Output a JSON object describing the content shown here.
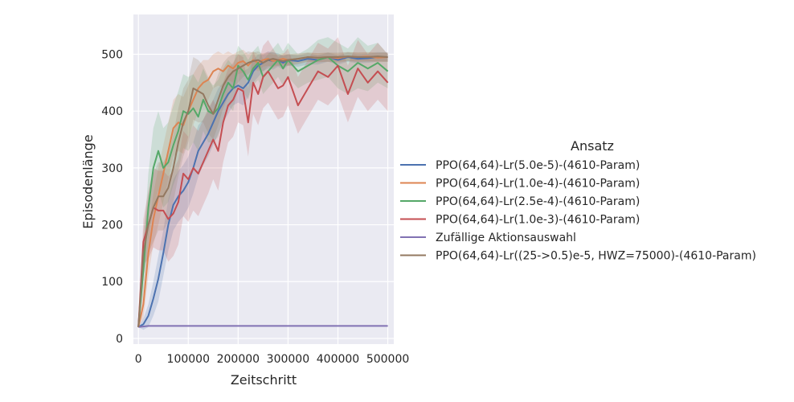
{
  "chart_data": {
    "type": "line",
    "xlabel": "Zeitschritt",
    "ylabel": "Episodenlänge",
    "xlim": [
      -10000,
      512000
    ],
    "ylim": [
      -10,
      570
    ],
    "xticks": [
      0,
      100000,
      200000,
      300000,
      400000,
      500000
    ],
    "xtick_labels": [
      "0",
      "100000",
      "200000",
      "300000",
      "400000",
      "500000"
    ],
    "yticks": [
      0,
      100,
      200,
      300,
      400,
      500
    ],
    "ytick_labels": [
      "0",
      "100",
      "200",
      "300",
      "400",
      "500"
    ],
    "grid": true,
    "background": "#eaeaf2",
    "legend": {
      "title": "Ansatz",
      "placement": "outside-right"
    },
    "series": [
      {
        "name": "PPO(64,64)-Lr(5.0e-5)-(4610-Param)",
        "color": "#4c72b0",
        "x": [
          0,
          10000,
          20000,
          30000,
          40000,
          50000,
          60000,
          70000,
          80000,
          90000,
          100000,
          110000,
          120000,
          130000,
          140000,
          150000,
          160000,
          170000,
          180000,
          190000,
          200000,
          210000,
          220000,
          230000,
          240000,
          250000,
          260000,
          270000,
          280000,
          290000,
          300000,
          320000,
          340000,
          360000,
          380000,
          400000,
          420000,
          440000,
          460000,
          480000,
          500000
        ],
        "y": [
          20,
          25,
          40,
          70,
          105,
          150,
          200,
          235,
          250,
          260,
          275,
          300,
          330,
          345,
          360,
          380,
          400,
          415,
          430,
          440,
          445,
          440,
          450,
          470,
          480,
          485,
          490,
          488,
          490,
          485,
          490,
          488,
          492,
          490,
          495,
          490,
          495,
          492,
          493,
          495,
          495
        ],
        "band": [
          0,
          10,
          20,
          30,
          40,
          40,
          45,
          45,
          45,
          45,
          45,
          45,
          45,
          40,
          40,
          40,
          40,
          35,
          35,
          30,
          30,
          30,
          25,
          20,
          20,
          15,
          15,
          15,
          12,
          12,
          10,
          10,
          10,
          8,
          8,
          8,
          8,
          8,
          8,
          8,
          8
        ]
      },
      {
        "name": "PPO(64,64)-Lr(1.0e-4)-(4610-Param)",
        "color": "#dd8452",
        "x": [
          0,
          10000,
          20000,
          30000,
          40000,
          50000,
          60000,
          70000,
          80000,
          90000,
          100000,
          110000,
          120000,
          130000,
          140000,
          150000,
          160000,
          170000,
          180000,
          190000,
          200000,
          210000,
          220000,
          230000,
          240000,
          250000,
          260000,
          270000,
          280000,
          290000,
          300000,
          320000,
          340000,
          360000,
          380000,
          400000,
          420000,
          440000,
          460000,
          480000,
          500000
        ],
        "y": [
          20,
          60,
          150,
          210,
          250,
          290,
          330,
          370,
          380,
          375,
          400,
          420,
          440,
          450,
          455,
          470,
          475,
          470,
          480,
          475,
          485,
          488,
          480,
          490,
          485,
          490,
          492,
          488,
          490,
          492,
          490,
          492,
          495,
          494,
          495,
          493,
          496,
          495,
          496,
          494,
          495
        ],
        "band": [
          0,
          25,
          40,
          45,
          50,
          50,
          50,
          50,
          50,
          50,
          45,
          45,
          40,
          40,
          35,
          30,
          30,
          30,
          25,
          25,
          20,
          20,
          20,
          15,
          15,
          12,
          12,
          12,
          10,
          10,
          10,
          8,
          8,
          8,
          8,
          8,
          8,
          8,
          8,
          8,
          8
        ]
      },
      {
        "name": "PPO(64,64)-Lr(2.5e-4)-(4610-Param)",
        "color": "#55a868",
        "x": [
          0,
          10000,
          20000,
          30000,
          40000,
          50000,
          60000,
          70000,
          80000,
          90000,
          100000,
          110000,
          120000,
          130000,
          140000,
          150000,
          160000,
          170000,
          180000,
          190000,
          200000,
          210000,
          220000,
          230000,
          240000,
          250000,
          260000,
          270000,
          280000,
          290000,
          300000,
          320000,
          340000,
          360000,
          380000,
          400000,
          420000,
          440000,
          460000,
          480000,
          500000
        ],
        "y": [
          20,
          120,
          230,
          300,
          330,
          300,
          310,
          340,
          365,
          400,
          395,
          405,
          390,
          420,
          400,
          395,
          405,
          430,
          450,
          440,
          480,
          470,
          455,
          475,
          485,
          460,
          470,
          480,
          490,
          475,
          490,
          470,
          480,
          490,
          495,
          480,
          470,
          485,
          475,
          485,
          470
        ],
        "band": [
          0,
          40,
          60,
          70,
          70,
          70,
          70,
          70,
          70,
          65,
          65,
          60,
          60,
          55,
          55,
          50,
          50,
          45,
          40,
          40,
          35,
          35,
          35,
          30,
          30,
          30,
          30,
          30,
          30,
          30,
          30,
          30,
          30,
          35,
          35,
          40,
          40,
          45,
          40,
          35,
          30
        ]
      },
      {
        "name": "PPO(64,64)-Lr(1.0e-3)-(4610-Param)",
        "color": "#c44e52",
        "x": [
          0,
          10000,
          20000,
          30000,
          40000,
          50000,
          60000,
          70000,
          80000,
          90000,
          100000,
          110000,
          120000,
          130000,
          140000,
          150000,
          160000,
          170000,
          180000,
          190000,
          200000,
          210000,
          220000,
          230000,
          240000,
          250000,
          260000,
          270000,
          280000,
          290000,
          300000,
          320000,
          340000,
          360000,
          380000,
          400000,
          420000,
          440000,
          460000,
          480000,
          500000
        ],
        "y": [
          20,
          170,
          200,
          230,
          225,
          225,
          210,
          220,
          240,
          290,
          280,
          300,
          290,
          310,
          330,
          350,
          330,
          380,
          410,
          420,
          440,
          435,
          380,
          450,
          430,
          460,
          470,
          455,
          440,
          445,
          460,
          410,
          440,
          470,
          460,
          480,
          430,
          475,
          450,
          470,
          450
        ],
        "band": [
          0,
          40,
          60,
          70,
          70,
          70,
          75,
          75,
          75,
          75,
          75,
          75,
          75,
          75,
          75,
          70,
          70,
          70,
          65,
          65,
          60,
          60,
          60,
          55,
          55,
          55,
          55,
          55,
          55,
          55,
          50,
          50,
          50,
          50,
          50,
          50,
          50,
          50,
          50,
          50,
          50
        ]
      },
      {
        "name": "Zufällige Aktionsauswahl",
        "color": "#8172b3",
        "x": [
          0,
          20000,
          50000,
          100000,
          150000,
          200000,
          250000,
          300000,
          350000,
          400000,
          450000,
          500000
        ],
        "y": [
          20,
          22,
          22,
          22,
          22,
          22,
          22,
          22,
          22,
          22,
          22,
          22
        ],
        "band": [
          0,
          1,
          1,
          1,
          1,
          1,
          1,
          1,
          1,
          1,
          1,
          1
        ]
      },
      {
        "name": "PPO(64,64)-Lr((25->0.5)e-5, HWZ=75000)-(4610-Param)",
        "color": "#937860",
        "x": [
          0,
          10000,
          20000,
          30000,
          40000,
          50000,
          60000,
          70000,
          80000,
          90000,
          100000,
          110000,
          120000,
          130000,
          140000,
          150000,
          160000,
          170000,
          180000,
          190000,
          200000,
          210000,
          220000,
          230000,
          240000,
          250000,
          260000,
          270000,
          280000,
          290000,
          300000,
          320000,
          340000,
          360000,
          380000,
          400000,
          420000,
          440000,
          460000,
          480000,
          500000
        ],
        "y": [
          20,
          150,
          200,
          230,
          250,
          250,
          265,
          300,
          345,
          380,
          400,
          440,
          435,
          430,
          410,
          395,
          420,
          445,
          460,
          470,
          475,
          480,
          485,
          488,
          490,
          485,
          490,
          492,
          490,
          488,
          490,
          492,
          495,
          494,
          495,
          495,
          496,
          495,
          495,
          496,
          495
        ],
        "band": [
          0,
          40,
          50,
          60,
          60,
          60,
          60,
          60,
          60,
          60,
          55,
          55,
          55,
          50,
          50,
          45,
          45,
          40,
          35,
          30,
          25,
          20,
          20,
          15,
          15,
          15,
          12,
          12,
          10,
          10,
          10,
          10,
          8,
          8,
          8,
          8,
          8,
          8,
          8,
          8,
          8
        ]
      }
    ]
  }
}
